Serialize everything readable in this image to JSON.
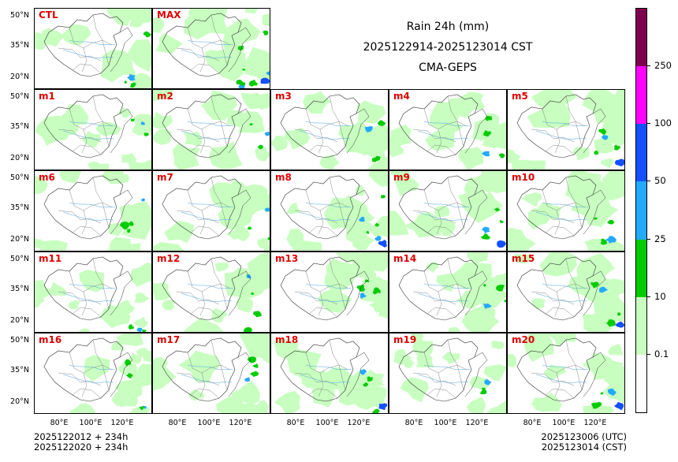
{
  "header": {
    "title_line1": "Rain 24h (mm)",
    "title_line2": "2025122914-2025123014 CST",
    "title_line3": "CMA-GEPS"
  },
  "footer": {
    "left_line1": "2025122012 + 234h",
    "left_line2": "2025122020 + 234h",
    "right_line1": "2025123006 (UTC)",
    "right_line2": "2025123014 (CST)"
  },
  "axes": {
    "lat_labels": [
      "50°N",
      "35°N",
      "20°N"
    ],
    "lon_labels": [
      "80°E",
      "100°E",
      "120°E"
    ]
  },
  "colorbar": {
    "labels": [
      "0.1",
      "10",
      "25",
      "50",
      "100",
      "250"
    ],
    "colors": [
      "#ffffff",
      "#c8ffc0",
      "#00cc00",
      "#22aaff",
      "#1450ff",
      "#ff00ff",
      "#800050"
    ]
  },
  "chart_data": {
    "type": "heatmap",
    "title": "Rain 24h (mm)",
    "subtitle": "2025122914-2025123014 CST",
    "model": "CMA-GEPS",
    "variable": "24-hour accumulated rainfall (mm)",
    "levels": [
      0.1,
      10,
      25,
      50,
      100,
      250
    ],
    "lon_range": [
      70,
      140
    ],
    "lat_range": [
      15,
      55
    ],
    "members": [
      {
        "name": "CTL",
        "row": 0,
        "col": 0,
        "light": 0.45,
        "heavy": 0.05
      },
      {
        "name": "MAX",
        "row": 0,
        "col": 1,
        "light": 0.62,
        "heavy": 0.14
      },
      {
        "name": "m1",
        "row": 1,
        "col": 0,
        "light": 0.4,
        "heavy": 0.03
      },
      {
        "name": "m2",
        "row": 1,
        "col": 1,
        "light": 0.42,
        "heavy": 0.03
      },
      {
        "name": "m3",
        "row": 1,
        "col": 2,
        "light": 0.48,
        "heavy": 0.05
      },
      {
        "name": "m4",
        "row": 1,
        "col": 3,
        "light": 0.44,
        "heavy": 0.05
      },
      {
        "name": "m5",
        "row": 1,
        "col": 4,
        "light": 0.52,
        "heavy": 0.06
      },
      {
        "name": "m6",
        "row": 2,
        "col": 0,
        "light": 0.42,
        "heavy": 0.04
      },
      {
        "name": "m7",
        "row": 2,
        "col": 1,
        "light": 0.4,
        "heavy": 0.02
      },
      {
        "name": "m8",
        "row": 2,
        "col": 2,
        "light": 0.45,
        "heavy": 0.07
      },
      {
        "name": "m9",
        "row": 2,
        "col": 3,
        "light": 0.44,
        "heavy": 0.06
      },
      {
        "name": "m10",
        "row": 2,
        "col": 4,
        "light": 0.46,
        "heavy": 0.05
      },
      {
        "name": "m11",
        "row": 3,
        "col": 0,
        "light": 0.38,
        "heavy": 0.03
      },
      {
        "name": "m12",
        "row": 3,
        "col": 1,
        "light": 0.5,
        "heavy": 0.05
      },
      {
        "name": "m13",
        "row": 3,
        "col": 2,
        "light": 0.44,
        "heavy": 0.04
      },
      {
        "name": "m14",
        "row": 3,
        "col": 3,
        "light": 0.46,
        "heavy": 0.05
      },
      {
        "name": "m15",
        "row": 3,
        "col": 4,
        "light": 0.48,
        "heavy": 0.06
      },
      {
        "name": "m16",
        "row": 4,
        "col": 0,
        "light": 0.42,
        "heavy": 0.04
      },
      {
        "name": "m17",
        "row": 4,
        "col": 1,
        "light": 0.48,
        "heavy": 0.05
      },
      {
        "name": "m18",
        "row": 4,
        "col": 2,
        "light": 0.4,
        "heavy": 0.06
      },
      {
        "name": "m19",
        "row": 4,
        "col": 3,
        "light": 0.42,
        "heavy": 0.03
      },
      {
        "name": "m20",
        "row": 4,
        "col": 4,
        "light": 0.46,
        "heavy": 0.06
      }
    ]
  }
}
